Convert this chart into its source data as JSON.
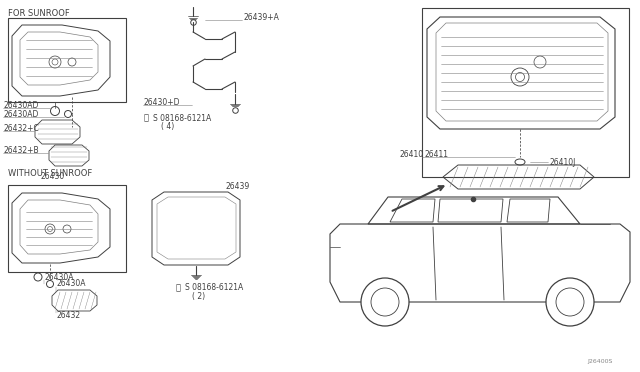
{
  "bg_color": "#ffffff",
  "lc": "#404040",
  "lc_light": "#808080",
  "fs": 5.5,
  "fsh": 6.0,
  "labels": {
    "for_sunroof": "FOR SUNROOF",
    "without_sunroof": "WITHOUT SUNROOF",
    "p26430": "26430",
    "p26430AD_1": "26430AD",
    "p26430AD_2": "26430AD",
    "p26432C": "26432+C",
    "p26432B": "26432+B",
    "p26439A": "26439+A",
    "p26430D": "26430+D",
    "screw1": "S 08168-6121A",
    "screw1_qty": "( 4)",
    "p26439": "26439",
    "screw2": "S 08168-6121A",
    "screw2_qty": "( 2)",
    "p26430A_1": "26430A",
    "p26430A_2": "26430A",
    "p26432": "26432",
    "p26410": "26410",
    "p26411": "26411",
    "p26410J": "26410J",
    "watermark": "J26400S"
  }
}
